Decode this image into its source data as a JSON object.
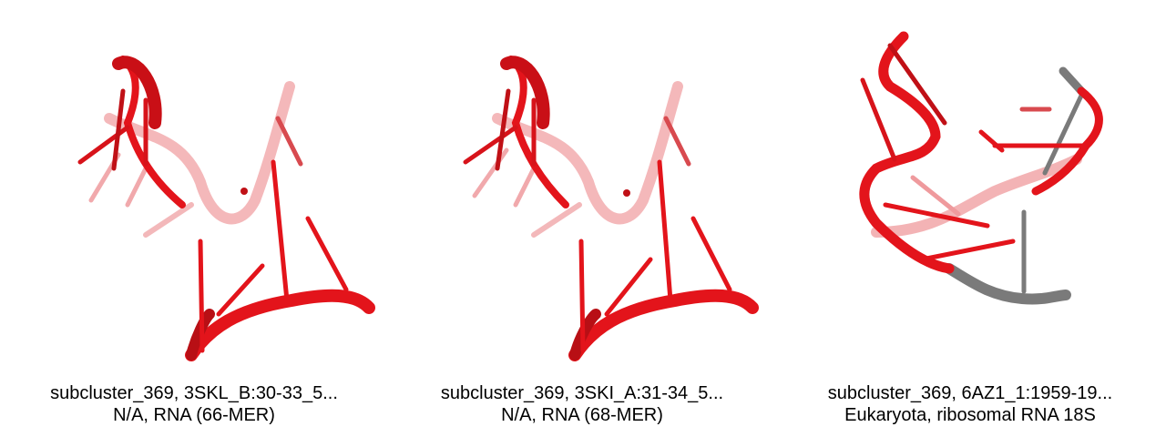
{
  "panels": [
    {
      "caption_line1": "subcluster_369, 3SKL_B:30-33_5...",
      "caption_line2": "N/A, RNA (66-MER)",
      "color": "#e3141b"
    },
    {
      "caption_line1": "subcluster_369, 3SKI_A:31-34_5...",
      "caption_line2": "N/A, RNA (68-MER)",
      "color": "#e3141b"
    },
    {
      "caption_line1": "subcluster_369, 6AZ1_1:1959-19...",
      "caption_line2": "Eukaryota, ribosomal RNA 18S",
      "color": "#e3141b",
      "secondary_color": "#7a7a7a"
    }
  ]
}
